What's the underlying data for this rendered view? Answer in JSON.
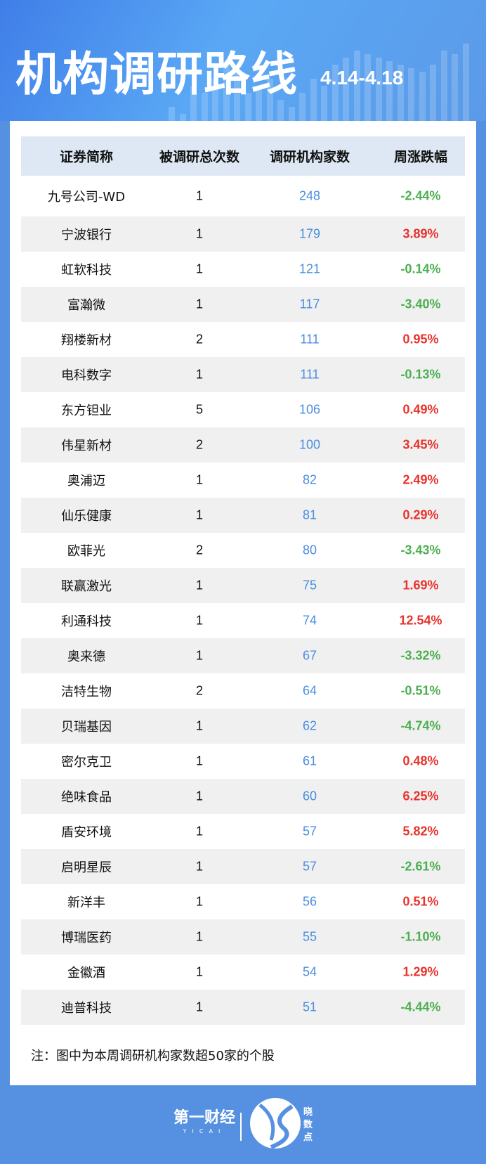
{
  "header": {
    "title": "机构调研路线",
    "date_range": "4.14-4.18"
  },
  "table": {
    "columns": [
      "证券简称",
      "被调研总次数",
      "调研机构家数",
      "周涨跌幅"
    ],
    "rows": [
      {
        "name": "九号公司-WD",
        "count": "1",
        "institutions": "248",
        "change": "-2.44%"
      },
      {
        "name": "宁波银行",
        "count": "1",
        "institutions": "179",
        "change": "3.89%"
      },
      {
        "name": "虹软科技",
        "count": "1",
        "institutions": "121",
        "change": "-0.14%"
      },
      {
        "name": "富瀚微",
        "count": "1",
        "institutions": "117",
        "change": "-3.40%"
      },
      {
        "name": "翔楼新材",
        "count": "2",
        "institutions": "111",
        "change": "0.95%"
      },
      {
        "name": "电科数字",
        "count": "1",
        "institutions": "111",
        "change": "-0.13%"
      },
      {
        "name": "东方钽业",
        "count": "5",
        "institutions": "106",
        "change": "0.49%"
      },
      {
        "name": "伟星新材",
        "count": "2",
        "institutions": "100",
        "change": "3.45%"
      },
      {
        "name": "奥浦迈",
        "count": "1",
        "institutions": "82",
        "change": "2.49%"
      },
      {
        "name": "仙乐健康",
        "count": "1",
        "institutions": "81",
        "change": "0.29%"
      },
      {
        "name": "欧菲光",
        "count": "2",
        "institutions": "80",
        "change": "-3.43%"
      },
      {
        "name": "联赢激光",
        "count": "1",
        "institutions": "75",
        "change": "1.69%"
      },
      {
        "name": "利通科技",
        "count": "1",
        "institutions": "74",
        "change": "12.54%"
      },
      {
        "name": "奥来德",
        "count": "1",
        "institutions": "67",
        "change": "-3.32%"
      },
      {
        "name": "洁特生物",
        "count": "2",
        "institutions": "64",
        "change": "-0.51%"
      },
      {
        "name": "贝瑞基因",
        "count": "1",
        "institutions": "62",
        "change": "-4.74%"
      },
      {
        "name": "密尔克卫",
        "count": "1",
        "institutions": "61",
        "change": "0.48%"
      },
      {
        "name": "绝味食品",
        "count": "1",
        "institutions": "60",
        "change": "6.25%"
      },
      {
        "name": "盾安环境",
        "count": "1",
        "institutions": "57",
        "change": "5.82%"
      },
      {
        "name": "启明星辰",
        "count": "1",
        "institutions": "57",
        "change": "-2.61%"
      },
      {
        "name": "新洋丰",
        "count": "1",
        "institutions": "56",
        "change": "0.51%"
      },
      {
        "name": "博瑞医药",
        "count": "1",
        "institutions": "55",
        "change": "-1.10%"
      },
      {
        "name": "金徽酒",
        "count": "1",
        "institutions": "54",
        "change": "1.29%"
      },
      {
        "name": "迪普科技",
        "count": "1",
        "institutions": "51",
        "change": "-4.44%"
      }
    ]
  },
  "note": "注：图中为本周调研机构家数超50家的个股",
  "footer": {
    "brand": "第一财经",
    "brand_sub": "YICAI",
    "product": "晓数点"
  },
  "colors": {
    "background": "#5591e0",
    "up": "#e8322c",
    "down": "#4caf50",
    "institutions": "#4a8ee0",
    "header_row": "#dee8f5",
    "stripe": "#f0f0f0"
  }
}
